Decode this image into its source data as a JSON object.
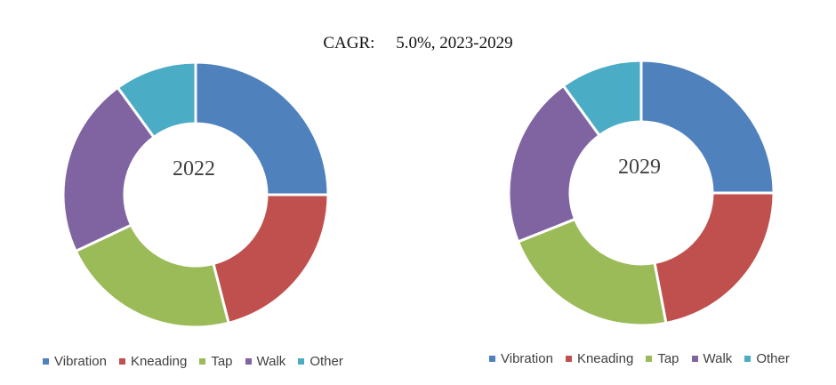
{
  "chart_data": {
    "type": "pie",
    "title": "CAGR:",
    "subtitle": "5.0%, 2023-2029",
    "categories": [
      "Vibration",
      "Kneading",
      "Tap",
      "Walk",
      "Other"
    ],
    "colors": [
      "#4f81bd",
      "#c0504d",
      "#9bbb59",
      "#8064a2",
      "#4bacc6"
    ],
    "charts": [
      {
        "label": "2022",
        "values": [
          25,
          21,
          22,
          22,
          10
        ]
      },
      {
        "label": "2029",
        "values": [
          25,
          22,
          22,
          21,
          10
        ]
      }
    ]
  }
}
